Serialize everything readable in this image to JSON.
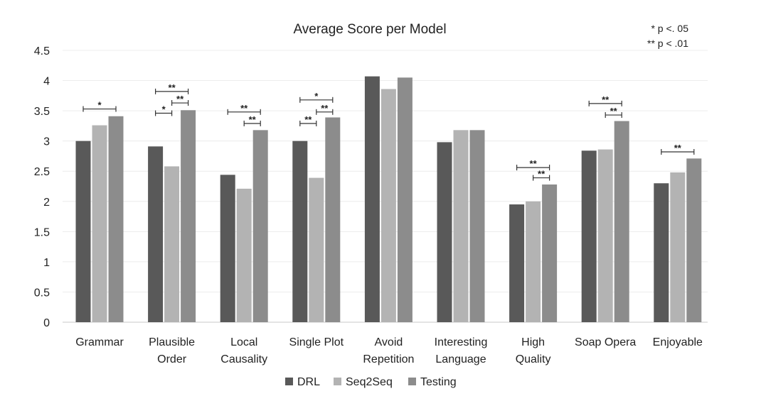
{
  "chart_data": {
    "type": "bar",
    "title": "Average Score per Model",
    "notes": [
      "* p <. 05",
      "** p < .01"
    ],
    "categories": [
      [
        "Grammar"
      ],
      [
        "Plausible",
        "Order"
      ],
      [
        "Local",
        "Causality"
      ],
      [
        "Single Plot"
      ],
      [
        "Avoid",
        "Repetition"
      ],
      [
        "Interesting",
        "Language"
      ],
      [
        "High",
        "Quality"
      ],
      [
        "Soap Opera"
      ],
      [
        "Enjoyable"
      ]
    ],
    "series": [
      {
        "name": "DRL",
        "color": "#595959",
        "values": [
          3.0,
          2.91,
          2.44,
          3.0,
          4.07,
          2.98,
          1.95,
          2.84,
          2.3
        ]
      },
      {
        "name": "Seq2Seq",
        "color": "#b3b3b3",
        "values": [
          3.26,
          2.58,
          2.21,
          2.39,
          3.86,
          3.18,
          2.0,
          2.86,
          2.48
        ]
      },
      {
        "name": "Testing",
        "color": "#8c8c8c",
        "values": [
          3.41,
          3.51,
          3.18,
          3.39,
          4.05,
          3.18,
          2.28,
          3.33,
          2.71
        ]
      }
    ],
    "ylim": [
      0,
      4.5
    ],
    "yticks": [
      "0",
      "0.5",
      "1",
      "1.5",
      "2",
      "2.5",
      "3",
      "3.5",
      "4",
      "4.5"
    ],
    "grid": true,
    "legend_position": "bottom",
    "significance": [
      {
        "category": 0,
        "from": 0,
        "to": 2,
        "label": "*",
        "y": 3.53
      },
      {
        "category": 1,
        "from": 0,
        "to": 2,
        "label": "**",
        "y": 3.82
      },
      {
        "category": 1,
        "from": 0,
        "to": 1,
        "label": "*",
        "y": 3.46
      },
      {
        "category": 1,
        "from": 1,
        "to": 2,
        "label": "**",
        "y": 3.63
      },
      {
        "category": 2,
        "from": 0,
        "to": 2,
        "label": "**",
        "y": 3.48
      },
      {
        "category": 2,
        "from": 1,
        "to": 2,
        "label": "**",
        "y": 3.29
      },
      {
        "category": 3,
        "from": 0,
        "to": 2,
        "label": "*",
        "y": 3.68
      },
      {
        "category": 3,
        "from": 0,
        "to": 1,
        "label": "**",
        "y": 3.29
      },
      {
        "category": 3,
        "from": 1,
        "to": 2,
        "label": "**",
        "y": 3.48
      },
      {
        "category": 6,
        "from": 0,
        "to": 2,
        "label": "**",
        "y": 2.56
      },
      {
        "category": 6,
        "from": 1,
        "to": 2,
        "label": "**",
        "y": 2.39
      },
      {
        "category": 7,
        "from": 0,
        "to": 2,
        "label": "**",
        "y": 3.62
      },
      {
        "category": 7,
        "from": 1,
        "to": 2,
        "label": "**",
        "y": 3.43
      },
      {
        "category": 8,
        "from": 0,
        "to": 2,
        "label": "**",
        "y": 2.82
      }
    ]
  }
}
